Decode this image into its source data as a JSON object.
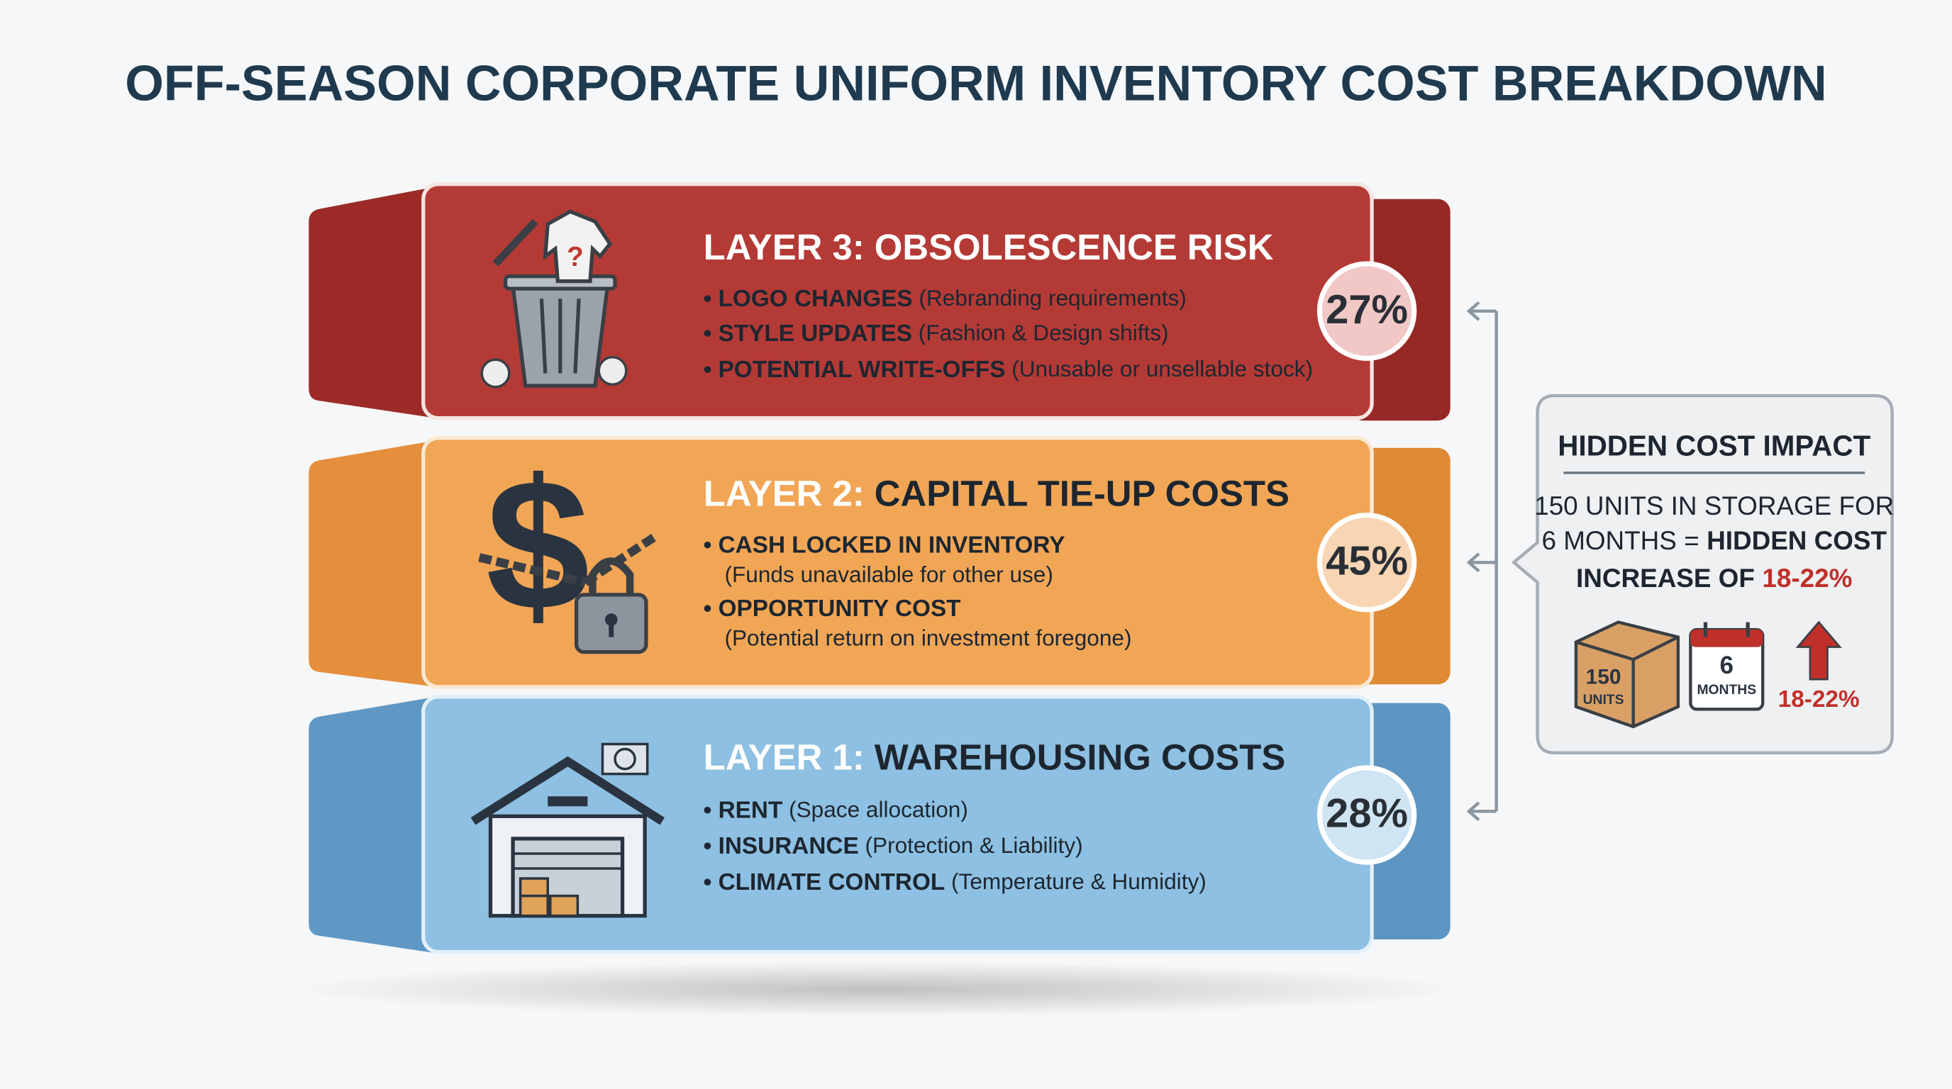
{
  "title": "OFF-SEASON CORPORATE UNIFORM INVENTORY COST BREAKDOWN",
  "layers": [
    {
      "label": "LAYER 3:",
      "name": "OBSOLESCENCE RISK",
      "percent": "27%",
      "items": [
        {
          "term": "LOGO CHANGES",
          "detail": "(Rebranding requirements)"
        },
        {
          "term": "STYLE UPDATES",
          "detail": "(Fashion & Design shifts)"
        },
        {
          "term": "POTENTIAL WRITE-OFFS",
          "detail": "(Unusable or unsellable stock)"
        }
      ]
    },
    {
      "label": "LAYER 2:",
      "name": "CAPITAL TIE-UP COSTS",
      "percent": "45%",
      "items": [
        {
          "term": "CASH LOCKED IN INVENTORY",
          "detail": "(Funds unavailable for other use)"
        },
        {
          "term": "OPPORTUNITY COST",
          "detail": "(Potential return on investment foregone)"
        }
      ]
    },
    {
      "label": "LAYER 1:",
      "name": "WAREHOUSING COSTS",
      "percent": "28%",
      "items": [
        {
          "term": "RENT",
          "detail": "(Space allocation)"
        },
        {
          "term": "INSURANCE",
          "detail": "(Protection & Liability)"
        },
        {
          "term": "CLIMATE CONTROL",
          "detail": "(Temperature & Humidity)"
        }
      ]
    }
  ],
  "callout": {
    "title": "HIDDEN COST IMPACT",
    "lines": [
      [
        "150 UNITS IN STORAGE FOR"
      ],
      [
        "6 MONTHS =",
        "HIDDEN COST"
      ],
      [
        "INCREASE OF",
        "18-22%"
      ]
    ],
    "icons": {
      "box_number": "150",
      "box_unit": "UNITS",
      "calendar_number": "6",
      "calendar_unit": "MONTHS",
      "arrow_label": "18-22%"
    }
  }
}
